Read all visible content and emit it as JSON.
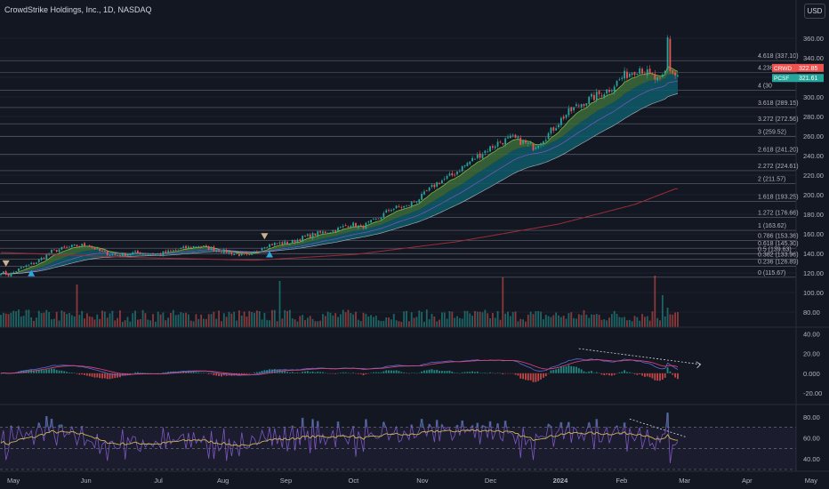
{
  "title": "CrowdStrike Holdings, Inc., 1D, NASDAQ",
  "currency": "USD",
  "colors": {
    "background": "#131722",
    "up": "#26a69a",
    "down": "#ef5350",
    "grid_line": "#434651",
    "ribbon_teal": "#0f5a6a",
    "ribbon_green": "#3d6b3a",
    "ema_long": "#9c2c3a",
    "macd": "#5b6bd6",
    "signal": "#e3467b",
    "rsi": "#7e57c2",
    "rsi_ma": "#c9b458",
    "badge_price": "#ef5350",
    "badge_ma": "#26a69a",
    "volume_label": "#b2b5be"
  },
  "price_axis": {
    "labels": [
      "360.00",
      "340.00",
      "320.00",
      "300.00",
      "280.00",
      "260.00",
      "240.00",
      "220.00",
      "200.00",
      "180.00",
      "160.00",
      "140.00",
      "120.00",
      "100.00",
      "80.00"
    ]
  },
  "macd_axis": {
    "labels": [
      "40.00",
      "20.00",
      "0.000",
      "-20.00"
    ]
  },
  "rsi_axis": {
    "labels": [
      "80.00",
      "60.00",
      "40.00"
    ]
  },
  "x_axis": {
    "labels": [
      "May",
      "Jun",
      "Jul",
      "Aug",
      "Sep",
      "Oct",
      "Nov",
      "Dec",
      "2024",
      "Feb",
      "Mar",
      "Apr",
      "May"
    ]
  },
  "price_badges": [
    {
      "name": "CRWD",
      "value": "322.85"
    },
    {
      "name": "PCSF",
      "value": "321.61"
    }
  ],
  "chart_data": {
    "type": "candlestick",
    "symbol": "CRWD",
    "fib_levels": [
      {
        "label": "4.618 (337.10)",
        "value": 337.1
      },
      {
        "label": "4.236 (3",
        "value": 325.0
      },
      {
        "label": "4 (30",
        "value": 307.0
      },
      {
        "label": "3.618 (289.15)",
        "value": 289.15
      },
      {
        "label": "3.272 (272.56)",
        "value": 272.56
      },
      {
        "label": "3 (259.52)",
        "value": 259.52
      },
      {
        "label": "2.618 (241.20)",
        "value": 241.2
      },
      {
        "label": "2.272 (224.61)",
        "value": 224.61
      },
      {
        "label": "2 (211.57)",
        "value": 211.57
      },
      {
        "label": "1.618 (193.25)",
        "value": 193.25
      },
      {
        "label": "1.272 (176.66)",
        "value": 176.66
      },
      {
        "label": "1 (163.62)",
        "value": 163.62
      },
      {
        "label": "0.786 (153.36)",
        "value": 153.36
      },
      {
        "label": "0.618 (145.30)",
        "value": 145.3
      },
      {
        "label": "0.5 (139.63)",
        "value": 139.63
      },
      {
        "label": "0.382 (133.96)",
        "value": 133.96
      },
      {
        "label": "0.236 (126.89)",
        "value": 126.89
      },
      {
        "label": "0 (115.67)",
        "value": 115.67
      }
    ],
    "price_anchors": [
      [
        0,
        121
      ],
      [
        3,
        118
      ],
      [
        8,
        125
      ],
      [
        14,
        131
      ],
      [
        20,
        142
      ],
      [
        28,
        147
      ],
      [
        34,
        149
      ],
      [
        40,
        141
      ],
      [
        46,
        138
      ],
      [
        54,
        141
      ],
      [
        62,
        139
      ],
      [
        70,
        144
      ],
      [
        78,
        148
      ],
      [
        86,
        143
      ],
      [
        92,
        140
      ],
      [
        98,
        137
      ],
      [
        104,
        148
      ],
      [
        108,
        150
      ],
      [
        114,
        151
      ],
      [
        120,
        157
      ],
      [
        126,
        161
      ],
      [
        132,
        164
      ],
      [
        138,
        170
      ],
      [
        142,
        167
      ],
      [
        148,
        174
      ],
      [
        154,
        186
      ],
      [
        160,
        188
      ],
      [
        166,
        198
      ],
      [
        172,
        212
      ],
      [
        178,
        220
      ],
      [
        184,
        232
      ],
      [
        190,
        243
      ],
      [
        196,
        253
      ],
      [
        202,
        258
      ],
      [
        210,
        249
      ],
      [
        216,
        262
      ],
      [
        222,
        280
      ],
      [
        228,
        292
      ],
      [
        234,
        300
      ],
      [
        240,
        308
      ],
      [
        246,
        322
      ],
      [
        252,
        330
      ],
      [
        256,
        322
      ],
      [
        260,
        315
      ],
      [
        262,
        325
      ],
      [
        263,
        360
      ],
      [
        264,
        328
      ],
      [
        266,
        322
      ]
    ],
    "ema_long_anchors": [
      [
        0,
        141
      ],
      [
        50,
        136
      ],
      [
        100,
        133
      ],
      [
        140,
        139
      ],
      [
        180,
        152
      ],
      [
        220,
        170
      ],
      [
        250,
        190
      ],
      [
        266,
        206
      ]
    ],
    "vol_spikes": [
      [
        30,
        48
      ],
      [
        110,
        52
      ],
      [
        198,
        56
      ],
      [
        258,
        58
      ],
      [
        261,
        36
      ],
      [
        263,
        22
      ]
    ],
    "markers": [
      {
        "type": "down",
        "index": 2
      },
      {
        "type": "up",
        "index": 12
      },
      {
        "type": "down",
        "index": 104
      },
      {
        "type": "up",
        "index": 106
      }
    ],
    "macd_ylim": [
      -30,
      45
    ],
    "rsi_ylim": [
      30,
      90
    ],
    "rsi_bands": [
      70,
      50,
      30
    ]
  }
}
